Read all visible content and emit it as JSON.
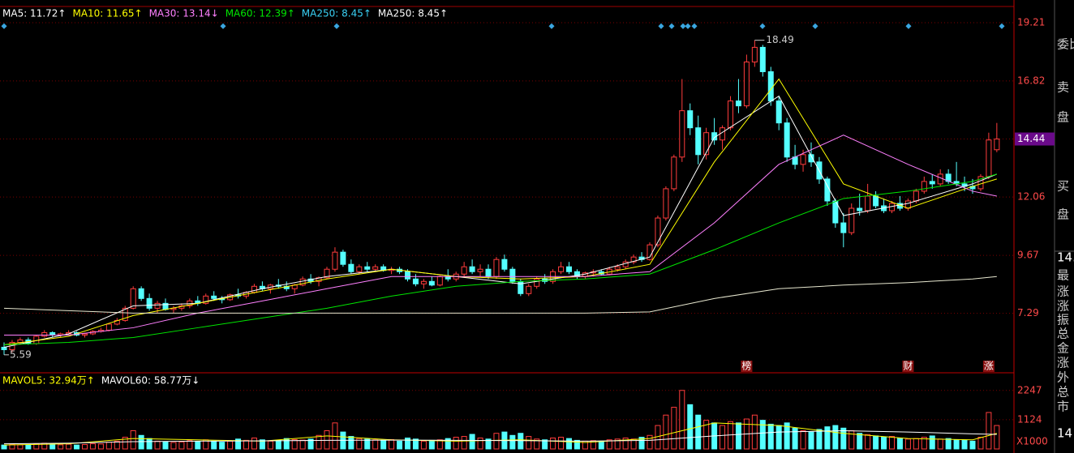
{
  "chart_data": {
    "type": "candlestick",
    "legend": [
      {
        "label": "MA5: 11.72↑",
        "color": "#ffffff"
      },
      {
        "label": "MA10: 11.65↑",
        "color": "#ffff00"
      },
      {
        "label": "MA30: 13.14↓",
        "color": "#ff80ff"
      },
      {
        "label": "MA60: 12.39↑",
        "color": "#00e600"
      },
      {
        "label": "MA250: 8.45↑",
        "color": "#3ad1f5"
      },
      {
        "label": "MA250: 8.45↑",
        "color": "#ffffff"
      }
    ],
    "ylim": [
      4.92,
      19.31
    ],
    "yticks": [
      7.29,
      9.67,
      12.06,
      14.44,
      16.82,
      19.21
    ],
    "up_color": "#ff3c3c",
    "down_color": "#54ffff",
    "candles": [
      [
        5.9,
        6.1,
        5.59,
        5.8
      ],
      [
        5.8,
        6.2,
        5.7,
        6.1
      ],
      [
        6.1,
        6.3,
        6.0,
        6.2
      ],
      [
        6.2,
        6.3,
        6.0,
        6.05
      ],
      [
        6.05,
        6.4,
        6.0,
        6.35
      ],
      [
        6.35,
        6.6,
        6.3,
        6.5
      ],
      [
        6.5,
        6.55,
        6.3,
        6.4
      ],
      [
        6.4,
        6.5,
        6.3,
        6.45
      ],
      [
        6.45,
        6.6,
        6.4,
        6.5
      ],
      [
        6.5,
        6.55,
        6.35,
        6.4
      ],
      [
        6.4,
        6.5,
        6.3,
        6.45
      ],
      [
        6.45,
        6.6,
        6.4,
        6.55
      ],
      [
        6.55,
        6.7,
        6.5,
        6.6
      ],
      [
        6.6,
        6.9,
        6.55,
        6.85
      ],
      [
        6.85,
        7.1,
        6.8,
        7.0
      ],
      [
        7.0,
        7.6,
        6.95,
        7.5
      ],
      [
        7.5,
        8.4,
        7.45,
        8.3
      ],
      [
        8.3,
        8.4,
        7.8,
        7.9
      ],
      [
        7.9,
        8.1,
        7.4,
        7.5
      ],
      [
        7.5,
        7.8,
        7.3,
        7.7
      ],
      [
        7.7,
        7.9,
        7.4,
        7.45
      ],
      [
        7.45,
        7.6,
        7.3,
        7.5
      ],
      [
        7.5,
        7.7,
        7.4,
        7.6
      ],
      [
        7.6,
        7.9,
        7.5,
        7.8
      ],
      [
        7.8,
        8.0,
        7.6,
        7.7
      ],
      [
        7.7,
        8.1,
        7.65,
        8.0
      ],
      [
        8.0,
        8.2,
        7.8,
        7.9
      ],
      [
        7.9,
        8.0,
        7.7,
        7.85
      ],
      [
        7.85,
        8.1,
        7.8,
        8.05
      ],
      [
        8.05,
        8.3,
        7.9,
        8.0
      ],
      [
        8.0,
        8.2,
        7.9,
        8.15
      ],
      [
        8.15,
        8.5,
        8.1,
        8.4
      ],
      [
        8.4,
        8.6,
        8.2,
        8.3
      ],
      [
        8.3,
        8.5,
        8.1,
        8.45
      ],
      [
        8.45,
        8.7,
        8.3,
        8.4
      ],
      [
        8.4,
        8.6,
        8.2,
        8.3
      ],
      [
        8.3,
        8.5,
        8.1,
        8.45
      ],
      [
        8.45,
        8.8,
        8.4,
        8.7
      ],
      [
        8.7,
        8.9,
        8.5,
        8.6
      ],
      [
        8.6,
        8.8,
        8.4,
        8.75
      ],
      [
        8.75,
        9.2,
        8.7,
        9.1
      ],
      [
        9.1,
        10.0,
        9.0,
        9.8
      ],
      [
        9.8,
        9.9,
        9.2,
        9.3
      ],
      [
        9.3,
        9.5,
        8.9,
        9.0
      ],
      [
        9.0,
        9.3,
        8.9,
        9.2
      ],
      [
        9.2,
        9.4,
        9.0,
        9.1
      ],
      [
        9.1,
        9.3,
        9.0,
        9.2
      ],
      [
        9.2,
        9.3,
        9.0,
        9.05
      ],
      [
        9.05,
        9.2,
        8.9,
        9.1
      ],
      [
        9.1,
        9.2,
        8.9,
        9.0
      ],
      [
        9.0,
        9.1,
        8.6,
        8.7
      ],
      [
        8.7,
        8.9,
        8.4,
        8.5
      ],
      [
        8.5,
        8.7,
        8.3,
        8.6
      ],
      [
        8.6,
        8.8,
        8.4,
        8.45
      ],
      [
        8.45,
        8.9,
        8.4,
        8.8
      ],
      [
        8.8,
        9.1,
        8.6,
        8.7
      ],
      [
        8.7,
        9.0,
        8.6,
        8.9
      ],
      [
        8.9,
        9.4,
        8.8,
        9.2
      ],
      [
        9.2,
        9.5,
        8.9,
        9.0
      ],
      [
        9.0,
        9.3,
        8.8,
        9.1
      ],
      [
        9.1,
        9.3,
        8.7,
        8.8
      ],
      [
        8.8,
        9.6,
        8.7,
        9.5
      ],
      [
        9.5,
        9.7,
        9.0,
        9.1
      ],
      [
        9.1,
        9.2,
        8.5,
        8.6
      ],
      [
        8.6,
        8.7,
        8.0,
        8.1
      ],
      [
        8.1,
        8.5,
        8.0,
        8.4
      ],
      [
        8.4,
        8.8,
        8.3,
        8.7
      ],
      [
        8.7,
        8.9,
        8.5,
        8.6
      ],
      [
        8.6,
        9.1,
        8.5,
        9.0
      ],
      [
        9.0,
        9.4,
        8.9,
        9.2
      ],
      [
        9.2,
        9.4,
        8.9,
        9.0
      ],
      [
        9.0,
        9.1,
        8.7,
        8.8
      ],
      [
        8.8,
        9.0,
        8.7,
        8.95
      ],
      [
        8.95,
        9.1,
        8.8,
        9.0
      ],
      [
        9.0,
        9.1,
        8.85,
        8.9
      ],
      [
        8.9,
        9.2,
        8.85,
        9.1
      ],
      [
        9.1,
        9.3,
        9.0,
        9.2
      ],
      [
        9.2,
        9.5,
        9.1,
        9.4
      ],
      [
        9.4,
        9.7,
        9.3,
        9.6
      ],
      [
        9.6,
        9.8,
        9.4,
        9.5
      ],
      [
        9.5,
        10.2,
        9.45,
        10.1
      ],
      [
        10.1,
        11.3,
        10.0,
        11.2
      ],
      [
        11.2,
        12.5,
        11.1,
        12.4
      ],
      [
        12.4,
        13.8,
        12.3,
        13.7
      ],
      [
        13.7,
        16.9,
        13.5,
        15.6
      ],
      [
        15.6,
        15.9,
        14.6,
        14.9
      ],
      [
        14.9,
        15.4,
        13.4,
        13.8
      ],
      [
        13.8,
        14.9,
        13.6,
        14.7
      ],
      [
        14.7,
        15.3,
        14.2,
        14.4
      ],
      [
        14.4,
        15.0,
        14.0,
        14.9
      ],
      [
        14.9,
        16.2,
        14.8,
        16.0
      ],
      [
        16.0,
        16.9,
        15.5,
        15.8
      ],
      [
        15.8,
        17.9,
        15.7,
        17.6
      ],
      [
        17.6,
        18.49,
        17.4,
        18.2
      ],
      [
        18.2,
        18.3,
        17.0,
        17.2
      ],
      [
        17.2,
        17.4,
        15.8,
        16.0
      ],
      [
        16.0,
        16.2,
        14.8,
        15.1
      ],
      [
        15.1,
        15.3,
        13.5,
        13.7
      ],
      [
        13.7,
        14.2,
        13.2,
        13.4
      ],
      [
        13.4,
        14.0,
        13.1,
        13.8
      ],
      [
        13.8,
        14.3,
        13.3,
        13.5
      ],
      [
        13.5,
        13.7,
        12.6,
        12.8
      ],
      [
        12.8,
        12.9,
        11.7,
        11.9
      ],
      [
        11.9,
        12.0,
        10.8,
        11.0
      ],
      [
        11.0,
        11.4,
        10.0,
        10.6
      ],
      [
        10.6,
        11.8,
        10.5,
        11.6
      ],
      [
        11.6,
        12.2,
        11.3,
        11.5
      ],
      [
        11.5,
        12.6,
        11.4,
        12.1
      ],
      [
        12.1,
        12.3,
        11.6,
        11.7
      ],
      [
        11.7,
        12.0,
        11.4,
        11.5
      ],
      [
        11.5,
        11.9,
        11.4,
        11.8
      ],
      [
        11.8,
        12.1,
        11.5,
        11.6
      ],
      [
        11.6,
        12.0,
        11.5,
        11.9
      ],
      [
        11.9,
        12.4,
        11.8,
        12.3
      ],
      [
        12.3,
        12.9,
        12.2,
        12.7
      ],
      [
        12.7,
        13.0,
        12.4,
        12.6
      ],
      [
        12.6,
        13.2,
        12.5,
        13.0
      ],
      [
        13.0,
        13.2,
        12.6,
        12.7
      ],
      [
        12.7,
        13.5,
        12.5,
        12.6
      ],
      [
        12.6,
        12.9,
        12.3,
        12.5
      ],
      [
        12.5,
        12.8,
        12.2,
        12.4
      ],
      [
        12.4,
        13.0,
        12.3,
        12.9
      ],
      [
        12.9,
        14.7,
        12.8,
        14.4
      ],
      [
        14.0,
        15.1,
        13.9,
        14.44
      ]
    ],
    "ma_index": [
      0,
      8,
      16,
      24,
      32,
      40,
      48,
      56,
      64,
      72,
      80,
      88,
      96,
      104,
      112,
      120,
      123
    ],
    "ma_lines": [
      {
        "color": "#ffffff",
        "values": [
          5.9,
          6.45,
          7.6,
          7.7,
          8.3,
          8.8,
          9.1,
          8.8,
          8.5,
          8.9,
          9.6,
          14.5,
          16.2,
          11.3,
          11.8,
          12.6,
          13.0
        ]
      },
      {
        "color": "#ffff00",
        "values": [
          6.0,
          6.35,
          7.2,
          7.7,
          8.2,
          8.7,
          9.1,
          8.8,
          8.7,
          8.8,
          9.3,
          13.5,
          16.9,
          12.6,
          11.6,
          12.5,
          12.8
        ]
      },
      {
        "color": "#ff80ff",
        "values": [
          6.4,
          6.4,
          6.7,
          7.3,
          7.8,
          8.3,
          8.8,
          8.8,
          8.8,
          8.8,
          9.0,
          11.0,
          13.4,
          14.6,
          13.4,
          12.3,
          12.1
        ]
      },
      {
        "color": "#00e600",
        "values": [
          6.0,
          6.1,
          6.3,
          6.7,
          7.1,
          7.5,
          8.0,
          8.4,
          8.6,
          8.7,
          8.9,
          9.9,
          11.0,
          12.0,
          12.3,
          12.7,
          13.0
        ]
      },
      {
        "color": "#e8e8d0",
        "values": [
          7.5,
          7.4,
          7.3,
          7.3,
          7.3,
          7.3,
          7.3,
          7.3,
          7.3,
          7.3,
          7.35,
          7.9,
          8.3,
          8.45,
          8.55,
          8.7,
          8.8
        ]
      }
    ],
    "high_label": {
      "value": 18.49,
      "index": 93
    },
    "low_label": {
      "value": 5.59,
      "index": 0
    },
    "event_markers": [
      {
        "text": "榜",
        "index": 92
      },
      {
        "text": "财",
        "index": 112
      },
      {
        "text": "涨",
        "index": 122
      }
    ],
    "volume": {
      "legend": [
        {
          "label": "MAVOL5: 32.94万↑",
          "color": "#ffff00"
        },
        {
          "label": "MAVOL60: 58.77万↓",
          "color": "#ffffff"
        }
      ],
      "ylim": [
        0,
        2800
      ],
      "yticks": [
        1124,
        2247
      ],
      "unit_label": "X1000",
      "values": [
        150,
        180,
        160,
        140,
        200,
        220,
        170,
        160,
        180,
        150,
        170,
        200,
        190,
        260,
        300,
        450,
        700,
        520,
        400,
        300,
        280,
        250,
        270,
        320,
        280,
        350,
        300,
        260,
        300,
        380,
        330,
        420,
        350,
        300,
        330,
        400,
        360,
        340,
        380,
        520,
        700,
        1000,
        650,
        480,
        400,
        380,
        350,
        330,
        360,
        300,
        420,
        380,
        300,
        330,
        350,
        400,
        450,
        480,
        560,
        420,
        380,
        600,
        650,
        520,
        600,
        480,
        380,
        350,
        420,
        450,
        400,
        330,
        300,
        320,
        300,
        350,
        380,
        420,
        380,
        450,
        520,
        900,
        1300,
        1600,
        2247,
        1700,
        1300,
        1100,
        1000,
        900,
        1050,
        1000,
        1150,
        1300,
        1100,
        950,
        900,
        1000,
        800,
        700,
        650,
        750,
        850,
        900,
        800,
        700,
        600,
        550,
        500,
        450,
        480,
        420,
        380,
        400,
        450,
        500,
        380,
        400,
        350,
        330,
        300,
        450,
        1400,
        900
      ],
      "ma_lines": [
        {
          "color": "#ffff00",
          "values": [
            150,
            200,
            400,
            350,
            300,
            500,
            350,
            300,
            350,
            250,
            400,
            1000,
            900,
            600,
            400,
            350,
            600
          ]
        },
        {
          "color": "#ffffff",
          "values": [
            200,
            220,
            280,
            300,
            310,
            330,
            340,
            330,
            320,
            300,
            330,
            500,
            650,
            700,
            650,
            580,
            560
          ]
        }
      ]
    }
  },
  "side_panel": [
    "委比",
    "卖",
    "盘",
    "买",
    "盘",
    "14.",
    "最",
    "涨",
    "涨",
    "振",
    "总",
    "金",
    "涨",
    "外",
    "总",
    "市",
    "14"
  ]
}
